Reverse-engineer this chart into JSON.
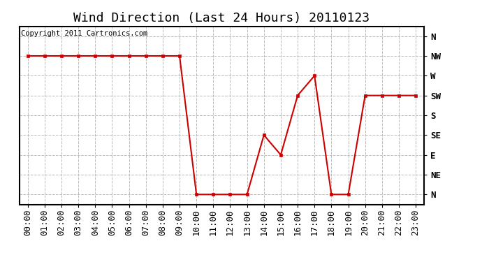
{
  "title": "Wind Direction (Last 24 Hours) 20110123",
  "copyright_text": "Copyright 2011 Cartronics.com",
  "x_labels": [
    "00:00",
    "01:00",
    "02:00",
    "03:00",
    "04:00",
    "05:00",
    "06:00",
    "07:00",
    "08:00",
    "09:00",
    "10:00",
    "11:00",
    "12:00",
    "13:00",
    "14:00",
    "15:00",
    "16:00",
    "17:00",
    "18:00",
    "19:00",
    "20:00",
    "21:00",
    "22:00",
    "23:00"
  ],
  "x_values": [
    0,
    1,
    2,
    3,
    4,
    5,
    6,
    7,
    8,
    9,
    10,
    11,
    12,
    13,
    14,
    15,
    16,
    17,
    18,
    19,
    20,
    21,
    22,
    23
  ],
  "y_values": [
    7,
    7,
    7,
    7,
    7,
    7,
    7,
    7,
    7,
    7,
    0,
    0,
    0,
    0,
    3,
    2,
    5,
    6,
    0,
    0,
    5,
    5,
    5,
    5
  ],
  "y_ticks": [
    8,
    7,
    6,
    5,
    4,
    3,
    2,
    1,
    0
  ],
  "y_tick_labels": [
    "N",
    "NW",
    "W",
    "SW",
    "S",
    "SE",
    "E",
    "NE",
    "N"
  ],
  "line_color": "#cc0000",
  "marker": "s",
  "marker_size": 3,
  "marker_color": "#cc0000",
  "bg_color": "#ffffff",
  "grid_color": "#bbbbbb",
  "title_fontsize": 13,
  "axis_label_fontsize": 9,
  "copyright_fontsize": 7.5,
  "line_width": 1.5
}
